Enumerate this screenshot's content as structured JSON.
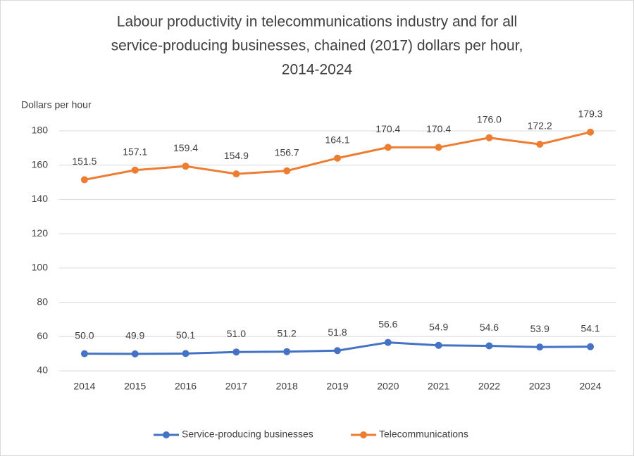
{
  "chart_data": {
    "type": "line",
    "title": [
      "Labour productivity in telecommunications industry and for all",
      "service-producing businesses, chained (2017) dollars per hour,",
      "2014-2024"
    ],
    "y_label": "Dollars per hour",
    "categories": [
      "2014",
      "2015",
      "2016",
      "2017",
      "2018",
      "2019",
      "2020",
      "2021",
      "2022",
      "2023",
      "2024"
    ],
    "series": [
      {
        "name": "Service-producing businesses",
        "color": "#4472c4",
        "values": [
          50.0,
          49.9,
          50.1,
          51.0,
          51.2,
          51.8,
          56.6,
          54.9,
          54.6,
          53.9,
          54.1
        ],
        "value_labels": [
          "50.0",
          "49.9",
          "50.1",
          "51.0",
          "51.2",
          "51.8",
          "56.6",
          "54.9",
          "54.6",
          "53.9",
          "54.1"
        ]
      },
      {
        "name": "Telecommunications",
        "color": "#ed7d31",
        "values": [
          151.5,
          157.1,
          159.4,
          154.9,
          156.7,
          164.1,
          170.4,
          170.4,
          176.0,
          172.2,
          179.3
        ],
        "value_labels": [
          "151.5",
          "157.1",
          "159.4",
          "154.9",
          "156.7",
          "164.1",
          "170.4",
          "170.4",
          "176.0",
          "172.2",
          "179.3"
        ]
      }
    ],
    "ylim": [
      40,
      180
    ],
    "yticks": [
      40,
      60,
      80,
      100,
      120,
      140,
      160,
      180
    ],
    "grid": true,
    "legend": "bottom"
  }
}
